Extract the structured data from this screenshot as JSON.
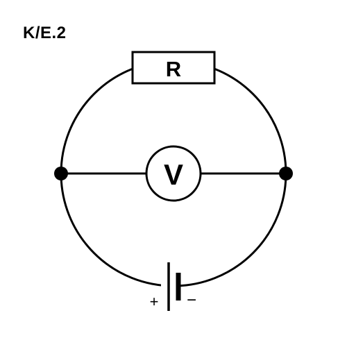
{
  "figure_label": "K/E.2",
  "resistor": {
    "label": "R"
  },
  "voltmeter": {
    "label": "V"
  },
  "battery": {
    "positive_label": "+",
    "negative_label": "−"
  },
  "colors": {
    "stroke": "#000000",
    "background": "#ffffff"
  },
  "icons": [
    "resistor-icon",
    "voltmeter-icon",
    "battery-cell-icon",
    "junction-dot-icon"
  ]
}
